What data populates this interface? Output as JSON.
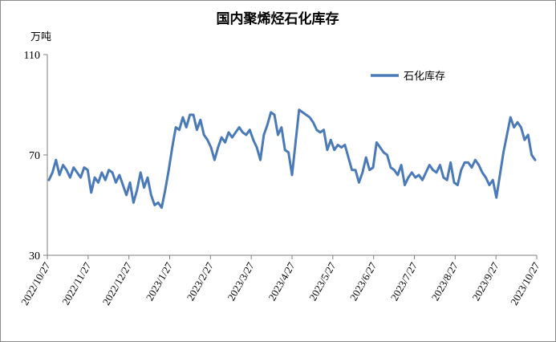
{
  "colors": {
    "series": "#4a7ab8",
    "axis": "#7f7f7f",
    "text": "#000000"
  },
  "chart_data": {
    "type": "line",
    "title": "国内聚烯烃石化库存",
    "ylabel": "万吨",
    "ylim": [
      30,
      110
    ],
    "yticks": [
      30,
      70,
      110
    ],
    "grid": false,
    "legend_position": "top-right",
    "x_tick_labels": [
      "2022/10/27",
      "2022/11/27",
      "2022/12/27",
      "2023/1/27",
      "2023/2/27",
      "2023/3/27",
      "2023/4/27",
      "2023/5/27",
      "2023/6/27",
      "2023/7/27",
      "2023/8/27",
      "2023/9/27",
      "2023/10/27"
    ],
    "series": [
      {
        "name": "石化库存",
        "values": [
          60,
          63,
          68,
          62,
          66,
          64,
          61,
          65,
          63,
          61,
          65,
          64,
          55,
          61,
          59,
          63,
          60,
          64,
          63,
          59,
          62,
          58,
          54,
          59,
          51,
          56,
          63,
          57,
          61,
          54,
          50,
          51,
          49,
          56,
          64,
          73,
          81,
          80,
          85,
          81,
          86,
          86,
          80,
          84,
          78,
          76,
          73,
          68,
          73,
          77,
          75,
          79,
          77,
          79,
          81,
          79,
          78,
          80,
          76,
          73,
          68,
          78,
          82,
          87,
          86,
          78,
          81,
          72,
          71,
          62,
          75,
          88,
          87,
          86,
          85,
          83,
          80,
          79,
          80,
          72,
          76,
          72,
          74,
          73,
          74,
          69,
          64,
          64,
          59,
          63,
          69,
          64,
          65,
          75,
          73,
          71,
          70,
          65,
          64,
          62,
          66,
          58,
          61,
          63,
          61,
          62,
          60,
          63,
          66,
          64,
          63,
          66,
          61,
          60,
          67,
          59,
          58,
          64,
          67,
          67,
          65,
          68,
          66,
          63,
          61,
          58,
          60,
          53,
          62,
          71,
          78,
          85,
          81,
          83,
          81,
          76,
          78,
          70,
          68
        ],
        "approx_samples_per_month": 9.8
      }
    ]
  }
}
